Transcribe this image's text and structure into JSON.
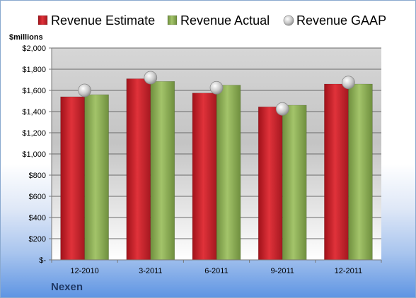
{
  "chart_data": {
    "type": "bar",
    "unit_label": "$millions",
    "categories": [
      "12-2010",
      "3-2011",
      "6-2011",
      "9-2011",
      "12-2011"
    ],
    "series": [
      {
        "name": "Revenue Estimate",
        "type": "bar",
        "color": "#c8202a",
        "values": [
          1540,
          1710,
          1575,
          1445,
          1660
        ]
      },
      {
        "name": "Revenue Actual",
        "type": "bar",
        "color": "#8aae52",
        "values": [
          1560,
          1685,
          1650,
          1460,
          1660
        ]
      },
      {
        "name": "Revenue GAAP",
        "type": "point",
        "color": "#c9c9c9",
        "values": [
          1600,
          1720,
          1625,
          1425,
          1675
        ]
      }
    ],
    "ylim": [
      0,
      2000
    ],
    "y_ticks": [
      0,
      200,
      400,
      600,
      800,
      1000,
      1200,
      1400,
      1600,
      1800,
      2000
    ],
    "y_tick_labels": [
      "$-",
      "$200",
      "$400",
      "$600",
      "$800",
      "$1,000",
      "$1,200",
      "$1,400",
      "$1,600",
      "$1,800",
      "$2,000"
    ],
    "grid": true,
    "legend_position": "top"
  },
  "company": "Nexen"
}
